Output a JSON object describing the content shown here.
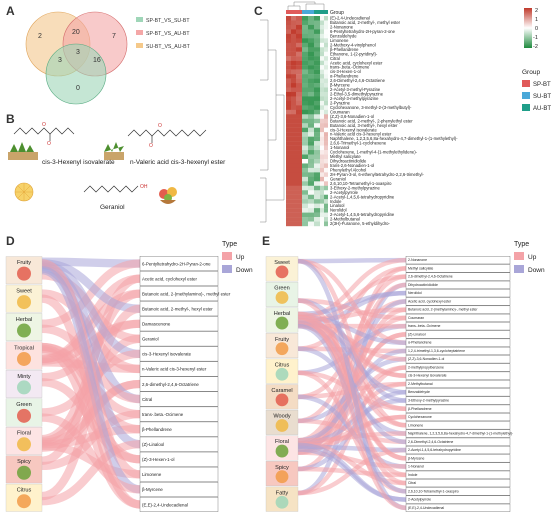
{
  "panels": {
    "a": "A",
    "b": "B",
    "c": "C",
    "d": "D",
    "e": "E"
  },
  "venn": {
    "legend": [
      "SP-BT_VS_SU-BT",
      "SP-BT_VS_AU-BT",
      "SU-BT_VS_AU-BT"
    ],
    "colors": [
      "#9fd6b8",
      "#f4a7a7",
      "#f5c98a"
    ],
    "counts": {
      "only1": "2",
      "only2": "7",
      "only3": "0",
      "r12": "20",
      "r13": "3",
      "r23": "16",
      "r123": "3"
    }
  },
  "compounds": {
    "c1": "cis-3-Hexenyl isovalerate",
    "c2": "n-Valeric acid cis-3-hexenyl ester",
    "c3": "Geraniol"
  },
  "heatmap": {
    "group_label": "Group",
    "scale": [
      "2",
      "1",
      "0",
      "-1",
      "-2"
    ],
    "legend_title": "Group",
    "groups": [
      {
        "name": "SP-BT",
        "color": "#e05a5a"
      },
      {
        "name": "SU-BT",
        "color": "#4aa8d8"
      },
      {
        "name": "AU-BT",
        "color": "#1f9e89"
      }
    ],
    "row_labels": [
      "(E)-2,4-Undecadienal",
      "Butanoic acid, 2-methyl-, methyl ester",
      "2-Nonanone",
      "6-Pentyltetrahydro-2H-pyran-2-one",
      "Benzaldehyde",
      "Limonene",
      "2-Methoxy-4-vinylphenol",
      "β-Phellandrene",
      "Ethanone, 1-(2-pyridinyl)-",
      "Citral",
      "Acetic acid, cyclohexyl ester",
      "trans-.beta.-Ocimene",
      "cis-3-Hexen-1-ol",
      "α-Phellandrene",
      "2,6-Dimethyl-2,4,6-Octatriene",
      "β-Myrcene",
      "2-Acetyl-3-methyl-Pyrazine",
      "2-Ethyl-3,5-dimethylpyrazine",
      "2-Acetyl-3-methylpyrazine",
      "2-Pyrazine",
      "Cyclohexanone, 3-methyl-2-(3-methylbutyl)-",
      "Coumaran",
      "(Z,Z)-3,6-Nonadien-1-ol",
      "Butanoic acid, 2-methyl-, 2-phenylethyl ester",
      "Butanoic acid, 3-methyl-, hexyl ester",
      "cis-3-Hexenyl isovalerate",
      "n-Valeric acid cis-3-hexenyl ester",
      "Naphthalene, 1,2,3,5,6,8a-hexahydro-4,7-dimethyl-1-(1-methylethyl)-",
      "2,6,6-Trimethyl-1-cyclohexene",
      "1-Nonanol",
      "Cyclohexene, 1-methyl-4-(1-methylethylidene)-",
      "Methyl salicylate",
      "Dihydroactinidiolide",
      "trans-2,6-Nonadien-1-ol",
      "Phenylethyl Alcohol",
      "2H-Pyran-3-ol, 6-ethenyltetrahydro-2,2,6-trimethyl-",
      "Geraniol",
      "2,6,10,10-Tetramethyl-1-oxaspiro",
      "3-Ethoxy-2-methylpyrazine",
      "2-Acetylpyrrole",
      "2-Acetyl-1,4,5,6-tetrahydropyridine",
      "Indole",
      "Linalool",
      "Nerolidol",
      "2-Acetyl-1,4,5,6-tetrahydropyridine",
      "2-Methylbutanal",
      "2(3H)-Furanone, 5-ethyldihydro-"
    ]
  },
  "sankey_d": {
    "legend_title": "Type",
    "legend": [
      {
        "label": "Up",
        "color": "#f4a3a8"
      },
      {
        "label": "Down",
        "color": "#a9a6d8"
      }
    ],
    "categories": [
      "Fruity",
      "Sweet",
      "Herbal",
      "Tropical",
      "Minty",
      "Green",
      "Floral",
      "Spicy",
      "Citrus"
    ],
    "compounds": [
      "6-Pentyltetrahydro-2H-Pyran-2-one",
      "Acetic acid, cyclohexyl ester",
      "Butanoic acid, 2-(methylamino)-, methyl ester",
      "Butanoic acid, 2-methyl-, hexyl ester",
      "Damascenone",
      "Geraniol",
      "cis-3-Hexenyl isovalerate",
      "n-Valeric acid cis-3-hexenyl ester",
      "2,6-dimethyl-2,4,6-Octatriene",
      "Citral",
      "trans-.beta.-Ocimene",
      "β-Phellandrene",
      "(Z)-Linalool",
      "(Z)-3-Hexen-1-ol",
      "Limonene",
      "β-Myrcene",
      "(E,E)-2,4-Undecadienal"
    ]
  },
  "sankey_e": {
    "legend_title": "Type",
    "legend": [
      {
        "label": "Up",
        "color": "#f4a3a8"
      },
      {
        "label": "Down",
        "color": "#a9a6d8"
      }
    ],
    "categories": [
      "Sweet",
      "Green",
      "Herbal",
      "Fruity",
      "Citrus",
      "Caramel",
      "Woody",
      "Floral",
      "Spicy",
      "Fatty"
    ],
    "compounds": [
      "2-Nonanone",
      "Methyl salicylate",
      "2,6-dimethyl-2,4,6-Octatriene",
      "Dihydroactinidiolide",
      "Nerolidol",
      "Acetic acid, cyclohexyl ester",
      "Butanoic acid, 2-(methylamino)-, methyl ester",
      "Coumaran",
      "trans-.beta.-Ocimene",
      "(Z)-Linalool",
      "α-Phellandrene",
      "1,2,4-trimethyl-1,3,6-cycloheptatriene",
      "(Z,Z)-3,6-Nonadien-1-ol",
      "2-methylpropylbenzene",
      "cis-3-Hexenyl isovalerate",
      "2-Methylbutanal",
      "Benzaldehyde",
      "3-Ethoxy-2-methylpyrazine",
      "β-Phellandrene",
      "Cyclohexanone",
      "Limonene",
      "Naphthalene, 1,2,3,5,6,8a-hexahydro-4,7-dimethyl-1-(1-methylethyl)-",
      "2,6-Dimethyl-2,4,6-Octatriene",
      "2-Acetyl-1,4,5,6-tetrahydropyridine",
      "β-Myrcene",
      "1-Nonanol",
      "Indole",
      "Citral",
      "2,6,10,10-Tetramethyl-1-oxaspiro",
      "2-Acetylpyrrole",
      "(E,E)-2,4-Undecadienal"
    ]
  }
}
